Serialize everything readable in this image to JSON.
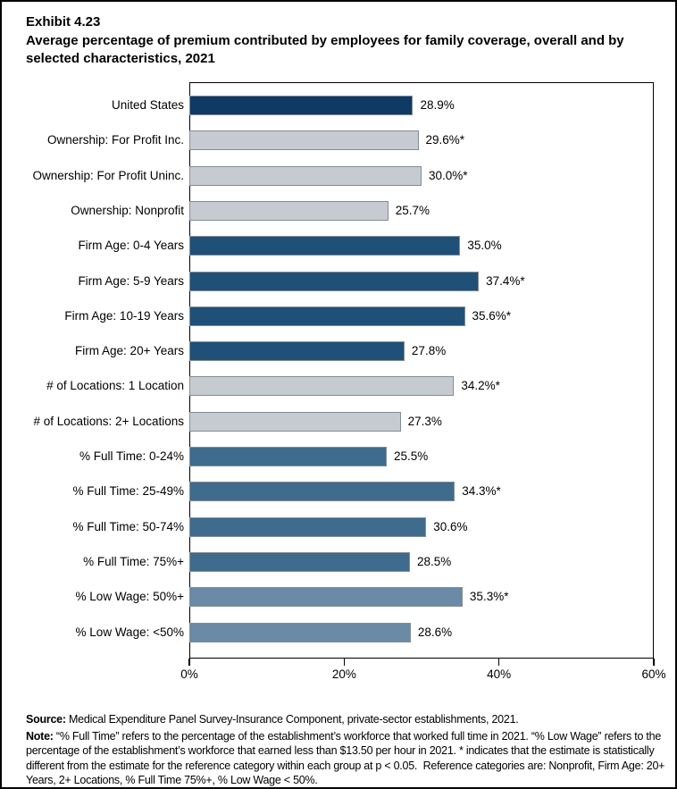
{
  "title": {
    "exhibit": "Exhibit 4.23",
    "text": "Average percentage of premium contributed by employees for family coverage, overall and by selected characteristics, 2021"
  },
  "chart_data": {
    "type": "bar",
    "orientation": "horizontal",
    "title": "Average percentage of premium contributed by employees for family coverage, overall and by selected characteristics, 2021",
    "categories": [
      "United States",
      "Ownership: For Profit Inc.",
      "Ownership: For Profit Uninc.",
      "Ownership: Nonprofit",
      "Firm Age: 0-4 Years",
      "Firm Age: 5-9 Years",
      "Firm Age: 10-19 Years",
      "Firm Age: 20+ Years",
      "# of Locations: 1 Location",
      "# of Locations: 2+ Locations",
      "% Full Time: 0-24%",
      "% Full Time: 25-49%",
      "% Full Time: 50-74%",
      "% Full Time: 75%+",
      "% Low Wage: 50%+",
      "% Low Wage: <50%"
    ],
    "values": [
      28.9,
      29.6,
      30.0,
      25.7,
      35.0,
      37.4,
      35.6,
      27.8,
      34.2,
      27.3,
      25.5,
      34.3,
      30.6,
      28.5,
      35.3,
      28.6
    ],
    "value_labels": [
      "28.9%",
      "29.6%*",
      "30.0%*",
      "25.7%",
      "35.0%",
      "37.4%*",
      "35.6%*",
      "27.8%",
      "34.2%*",
      "27.3%",
      "25.5%",
      "34.3%*",
      "30.6%",
      "28.5%",
      "35.3%*",
      "28.6%"
    ],
    "bar_colors": [
      "#0e3a63",
      "#c6cbd1",
      "#c6cbd1",
      "#c6cbd1",
      "#1f5078",
      "#1f5078",
      "#1f5078",
      "#1f5078",
      "#c6cbd1",
      "#c6cbd1",
      "#3f6b8d",
      "#3f6b8d",
      "#3f6b8d",
      "#3f6b8d",
      "#6a8aa6",
      "#6a8aa6"
    ],
    "bar_border_color": "#828d96",
    "x_ticks": [
      "0%",
      "20%",
      "40%",
      "60%"
    ],
    "xlim": [
      0,
      60
    ],
    "xlabel": "",
    "ylabel": "",
    "grid": false,
    "legend": "none"
  },
  "source": {
    "label": "Source:",
    "text": " Medical Expenditure Panel Survey-Insurance Component, private-sector establishments, 2021."
  },
  "note": {
    "label": "Note:",
    "text": " “% Full Time” refers to the percentage of the establishment’s workforce that worked full time in 2021. “% Low Wage” refers to the percentage of the establishment’s workforce that earned less than $13.50 per hour in 2021. * indicates that the estimate is statistically different from the estimate for the reference category within each group at p < 0.05.  Reference categories are: Nonprofit, Firm Age: 20+ Years, 2+ Locations, % Full Time 75%+, % Low Wage < 50%."
  }
}
